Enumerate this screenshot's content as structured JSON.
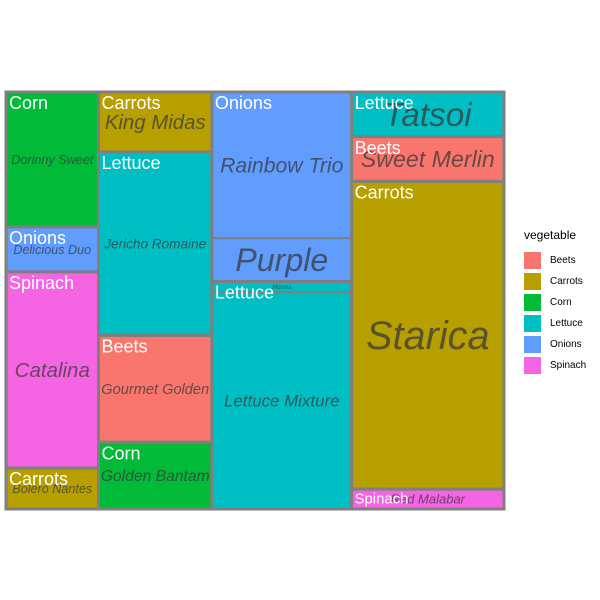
{
  "chart_data": {
    "type": "treemap",
    "legend": {
      "title": "vegetable",
      "placement": "right",
      "items": [
        {
          "name": "Beets",
          "color": "#F8766D"
        },
        {
          "name": "Carrots",
          "color": "#B79F00"
        },
        {
          "name": "Corn",
          "color": "#00BA38"
        },
        {
          "name": "Lettuce",
          "color": "#00BFC4"
        },
        {
          "name": "Onions",
          "color": "#619CFF"
        },
        {
          "name": "Spinach",
          "color": "#F564E3"
        }
      ]
    },
    "columns": [
      {
        "groups": [
          {
            "vegetable": "Corn",
            "varieties": [
              {
                "name": "Dorinny Sweet",
                "value": 33
              }
            ]
          },
          {
            "vegetable": "Onions",
            "varieties": [
              {
                "name": "Delicious Duo",
                "value": 11
              }
            ]
          },
          {
            "vegetable": "Spinach",
            "varieties": [
              {
                "name": "Catalina",
                "value": 48
              }
            ]
          },
          {
            "vegetable": "Carrots",
            "varieties": [
              {
                "name": "Bolero Nantes",
                "value": 10
              }
            ]
          }
        ]
      },
      {
        "groups": [
          {
            "vegetable": "Carrots",
            "varieties": [
              {
                "name": "King Midas",
                "value": 18
              }
            ]
          },
          {
            "vegetable": "Lettuce",
            "varieties": [
              {
                "name": "Jericho Romaine",
                "value": 55
              }
            ]
          },
          {
            "vegetable": "Beets",
            "varieties": [
              {
                "name": "Gourmet Golden",
                "value": 32
              }
            ]
          },
          {
            "vegetable": "Corn",
            "varieties": [
              {
                "name": "Golden Bantam",
                "value": 20
              }
            ]
          }
        ]
      },
      {
        "groups": [
          {
            "vegetable": "Onions",
            "varieties": [
              {
                "name": "Rainbow Trio",
                "value": 54
              },
              {
                "name": "Purple",
                "value": 16
              }
            ]
          },
          {
            "vegetable": "Lettuce",
            "varieties": [
              {
                "name": "Mizuna",
                "value": 4
              },
              {
                "name": "Lettuce Mixture",
                "value": 80
              }
            ]
          }
        ]
      },
      {
        "groups": [
          {
            "vegetable": "Lettuce",
            "varieties": [
              {
                "name": "Tatsoi",
                "value": 18
              }
            ]
          },
          {
            "vegetable": "Beets",
            "varieties": [
              {
                "name": "Sweet Merlin",
                "value": 18
              }
            ]
          },
          {
            "vegetable": "Carrots",
            "varieties": [
              {
                "name": "Starica",
                "value": 124
              }
            ]
          },
          {
            "vegetable": "Spinach",
            "varieties": [
              {
                "name": "Red Malabar",
                "value": 8
              }
            ]
          }
        ]
      }
    ]
  }
}
